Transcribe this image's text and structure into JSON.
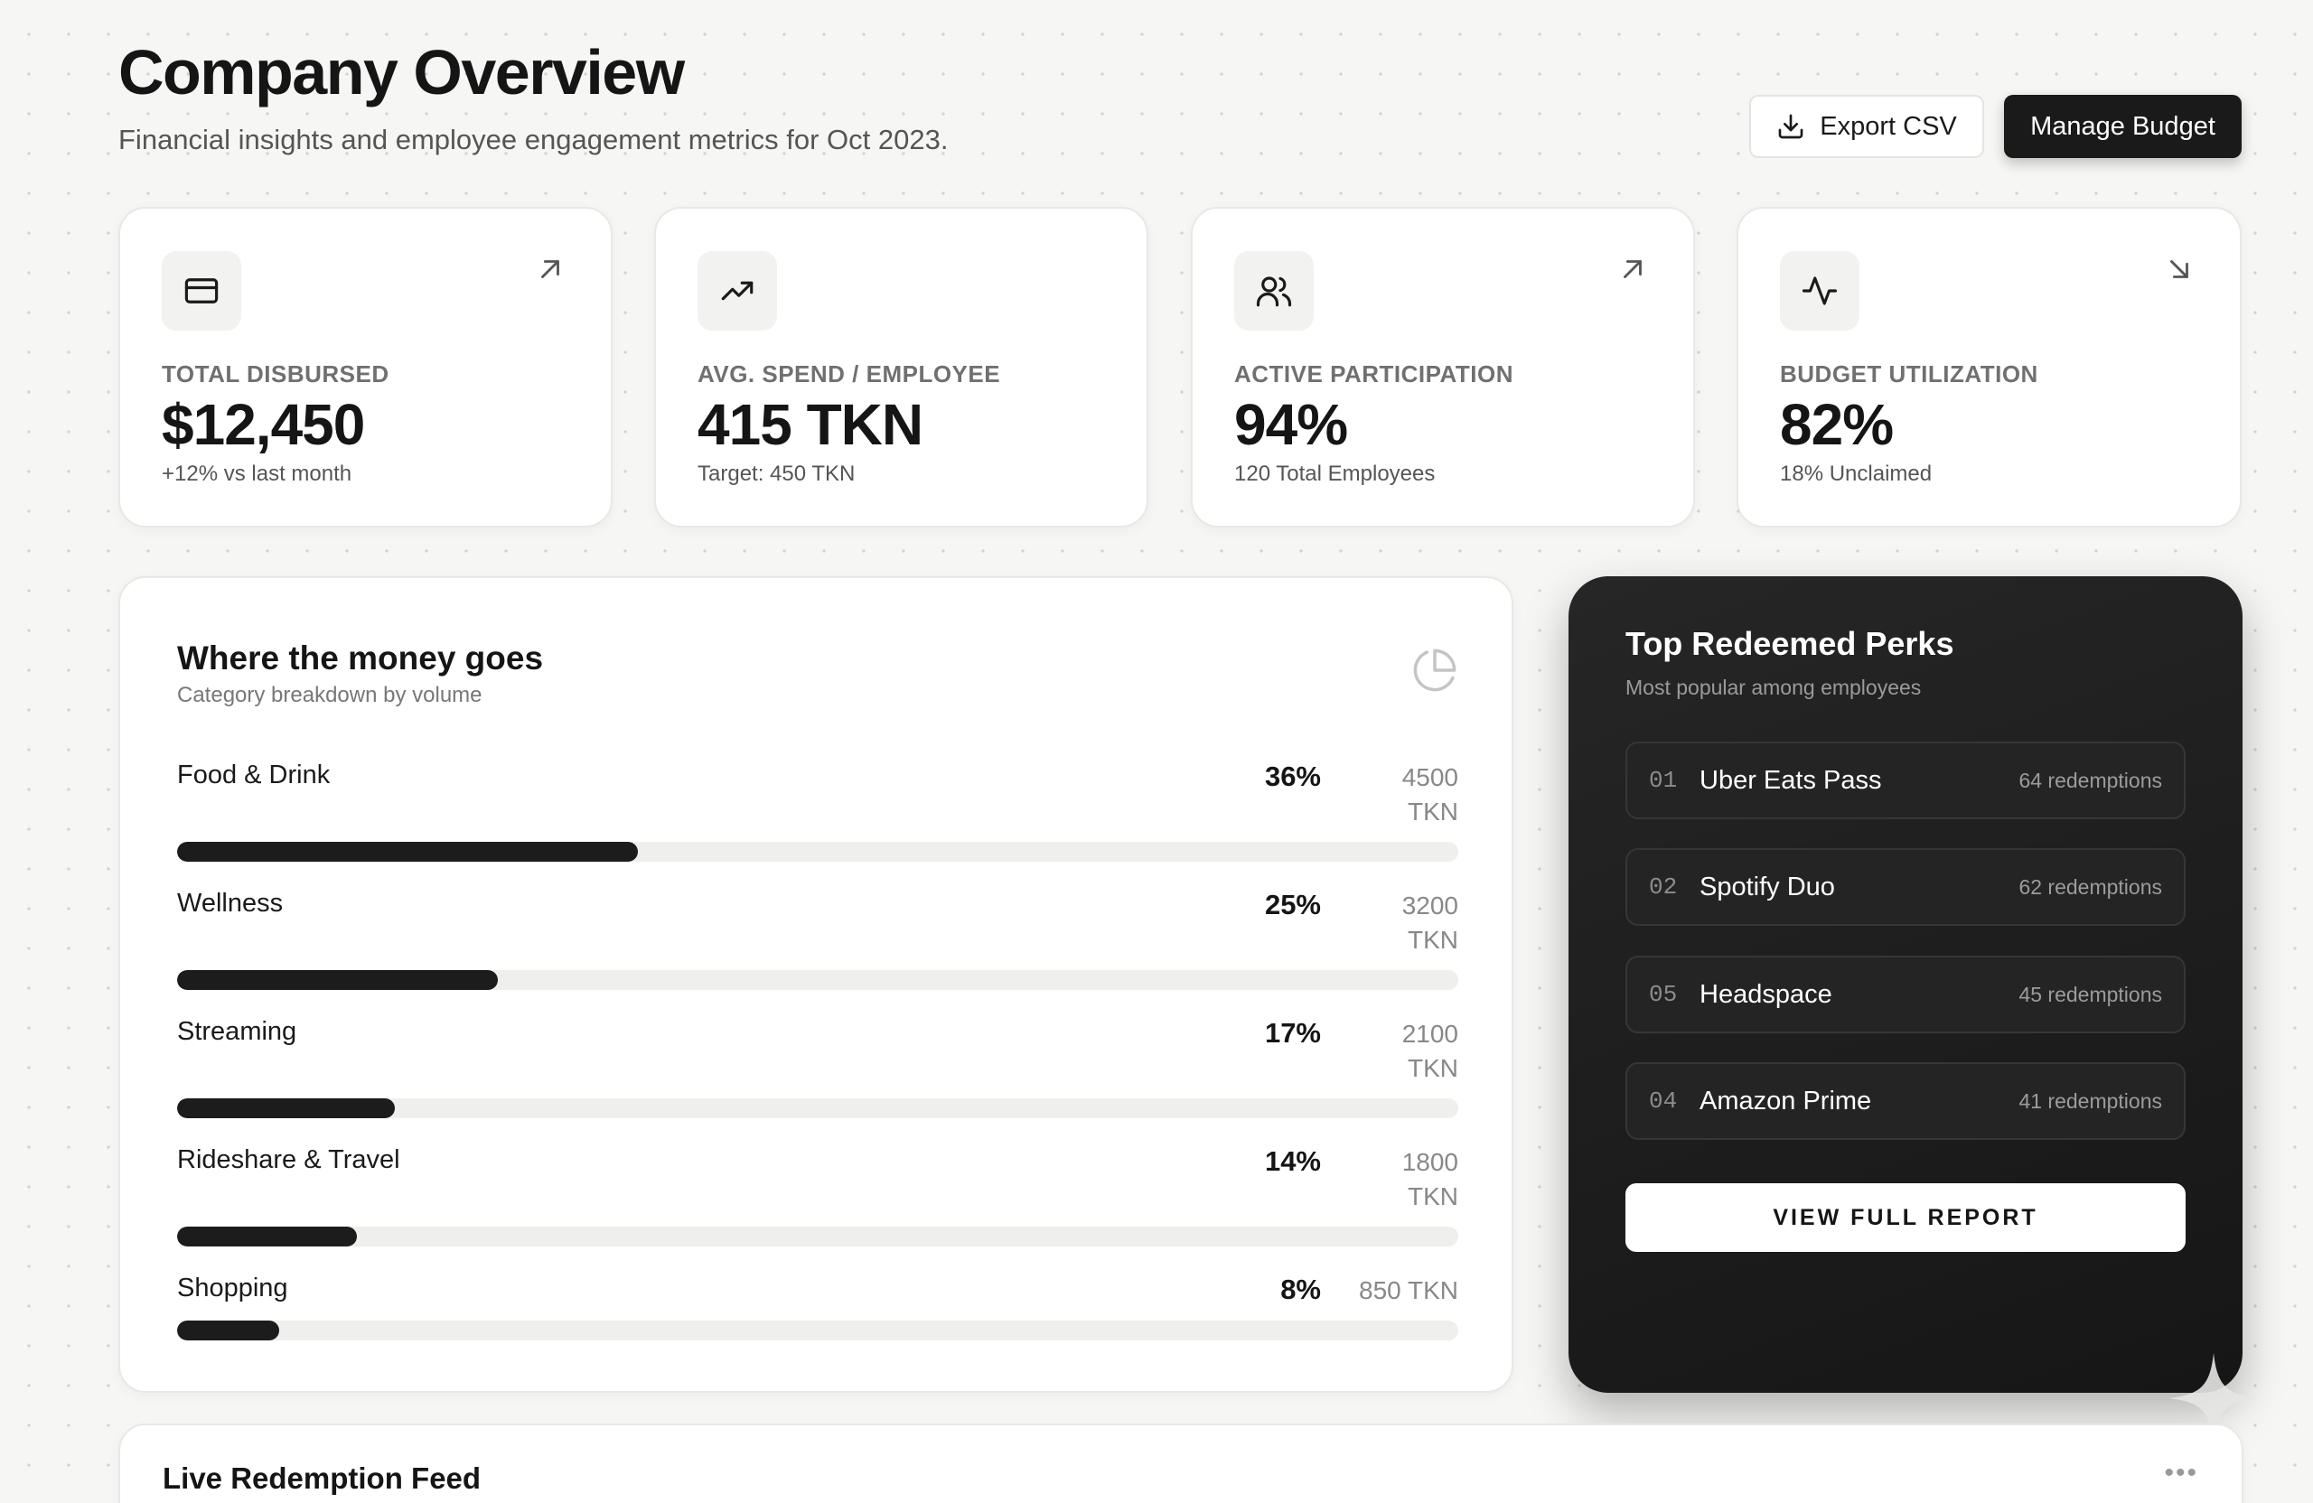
{
  "header": {
    "title": "Company Overview",
    "subtitle": "Financial insights and employee engagement metrics for Oct 2023.",
    "export_label": "Export CSV",
    "manage_label": "Manage Budget"
  },
  "stats": [
    {
      "label": "TOTAL DISBURSED",
      "value": "$12,450",
      "sub": "+12% vs last month",
      "icon": "credit-card-icon",
      "trend": "up-right"
    },
    {
      "label": "AVG. SPEND / EMPLOYEE",
      "value": "415 TKN",
      "sub": "Target: 450 TKN",
      "icon": "trending-up-icon",
      "trend": "none"
    },
    {
      "label": "ACTIVE PARTICIPATION",
      "value": "94%",
      "sub": "120 Total Employees",
      "icon": "users-icon",
      "trend": "up-right"
    },
    {
      "label": "BUDGET UTILIZATION",
      "value": "82%",
      "sub": "18% Unclaimed",
      "icon": "activity-icon",
      "trend": "down-right"
    }
  ],
  "categories": {
    "title": "Where the money goes",
    "subtitle": "Category breakdown by volume",
    "icon": "pie-chart-icon",
    "items": [
      {
        "name": "Food & Drink",
        "pct": "36%",
        "amount": "4500 TKN",
        "fraction": 0.36
      },
      {
        "name": "Wellness",
        "pct": "25%",
        "amount": "3200 TKN",
        "fraction": 0.25
      },
      {
        "name": "Streaming",
        "pct": "17%",
        "amount": "2100 TKN",
        "fraction": 0.17
      },
      {
        "name": "Rideshare & Travel",
        "pct": "14%",
        "amount": "1800 TKN",
        "fraction": 0.14
      },
      {
        "name": "Shopping",
        "pct": "8%",
        "amount": "850 TKN",
        "fraction": 0.08
      }
    ]
  },
  "perks": {
    "title": "Top Redeemed Perks",
    "subtitle": "Most popular among employees",
    "items": [
      {
        "num": "01",
        "name": "Uber Eats Pass",
        "count": "64 redemptions"
      },
      {
        "num": "02",
        "name": "Spotify Duo",
        "count": "62 redemptions"
      },
      {
        "num": "05",
        "name": "Headspace",
        "count": "45 redemptions"
      },
      {
        "num": "04",
        "name": "Amazon Prime",
        "count": "41 redemptions"
      }
    ],
    "button_label": "VIEW FULL REPORT"
  },
  "feed": {
    "title": "Live Redemption Feed",
    "more_label": "•••"
  },
  "colors": {
    "accent_dark": "#1a1a1a",
    "background": "#f6f6f4",
    "track": "#efefee"
  }
}
